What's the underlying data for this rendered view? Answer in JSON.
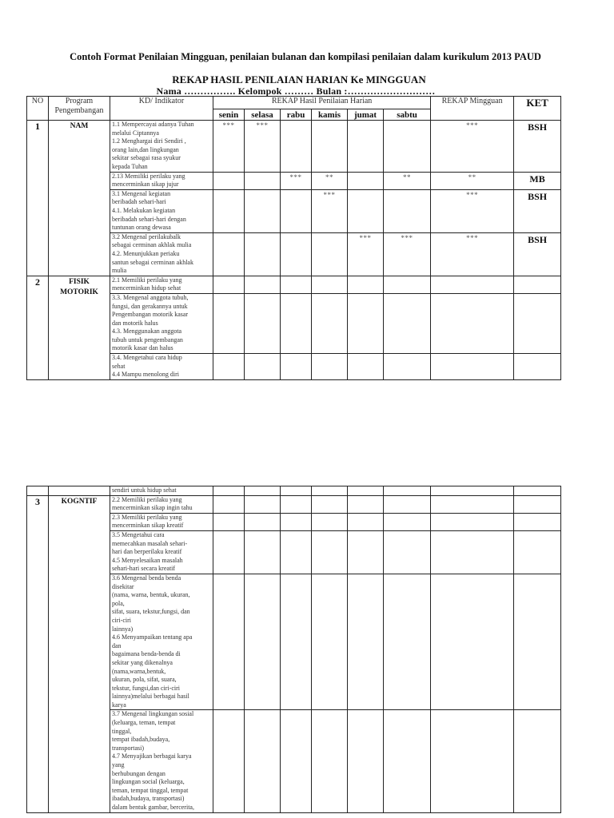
{
  "document_title": "Contoh Format Penilaian Mingguan, penilaian bulanan dan kompilasi penilaian dalam kurikulum 2013 PAUD",
  "rekap_title": "REKAP HASIL PENILAIAN HARIAN Ke MINGGUAN",
  "meta_line": "Nama …………….     Kelompok ………     Bulan :………………………",
  "headers": {
    "no": "NO",
    "program": "Program Pengembangan",
    "kd": "KD/ Indikator",
    "harian": "REKAP Hasil Penilaian Harian",
    "days": [
      "senin",
      "selasa",
      "rabu",
      "kamis",
      "jumat",
      "sabtu"
    ],
    "mingguan": "REKAP Mingguan",
    "ket": "KET"
  },
  "table1": [
    {
      "no": "1",
      "program": "NAM",
      "span": 4,
      "kd": "1.1 Mempercayai adanya Tuhan\nmelalui Ciptannya\n1.2 Menghargai diri Sendiri ,\norang lain,dan lingkungan\nsekitar sebagai rasa syukur\nkepada Tuhan",
      "days": [
        "***",
        "***",
        "",
        "",
        "",
        ""
      ],
      "mingguan": "***",
      "ket": "BSH"
    },
    {
      "kd": "2.13 Memiliki perilaku yang\nmencerminkan sikap jujur",
      "days": [
        "",
        "",
        "***",
        "**",
        "",
        "**"
      ],
      "mingguan": "**",
      "ket": "MB"
    },
    {
      "kd": "3.1 Mengenal kegiatan\nberibadah sehari-hari\n4.1. Melakukan kegiatan\nberibadah sehari-hari dengan\ntuntunan orang dewasa",
      "days": [
        "",
        "",
        "",
        "***",
        "",
        ""
      ],
      "mingguan": "***",
      "ket": "BSH"
    },
    {
      "kd": "3.2 Mengenal perilakubalk\nsebagai cerminan akhlak mulia\n4.2. Menunjukkan periaku\nsantun sebagai cerminan akhlak\nmulia",
      "days": [
        "",
        "",
        "",
        "",
        "***",
        "***"
      ],
      "mingguan": "***",
      "ket": "BSH"
    },
    {
      "no": "2",
      "program": "FISIK MOTORIK",
      "span": 3,
      "kd": "2.1 Memiliki perilaku yang\nmencerminkan hidup sehat",
      "days": [
        "",
        "",
        "",
        "",
        "",
        ""
      ],
      "mingguan": "",
      "ket": ""
    },
    {
      "kd": "3.3. Mengenal anggota tubuh,\nfungsi, dan gerakannya untuk\nPengembangan motorik kasar\ndan motorik halus\n4.3. Menggunakan anggota\ntubuh untuk pengembangan\nmotorik kasar dan halus",
      "days": [
        "",
        "",
        "",
        "",
        "",
        ""
      ],
      "mingguan": "",
      "ket": ""
    },
    {
      "kd": "3.4. Mengetahui cara hidup\nsehat\n4.4 Mampu menolong diri",
      "days": [
        "",
        "",
        "",
        "",
        "",
        ""
      ],
      "mingguan": "",
      "ket": ""
    }
  ],
  "table2": [
    {
      "no": "",
      "program": "",
      "span": 1,
      "kd": "sendiri untuk hidup sehat",
      "days": [
        "",
        "",
        "",
        "",
        "",
        ""
      ],
      "mingguan": "",
      "ket": ""
    },
    {
      "no": "3",
      "program": "KOGNTIF",
      "span": 5,
      "kd": "2.2 Memiliki perilaku yang\nmencerminkan sikap ingin tahu",
      "days": [
        "",
        "",
        "",
        "",
        "",
        ""
      ],
      "mingguan": "",
      "ket": ""
    },
    {
      "kd": "2.3 Memiliki perilaku yang\nmencerminkan sikap kreatif",
      "days": [
        "",
        "",
        "",
        "",
        "",
        ""
      ],
      "mingguan": "",
      "ket": ""
    },
    {
      "kd": "3.5 Mengetahui cara\nmemecahkan masalah sehari-\nhari dan berperilaku kreatif\n4.5 Menyelesaikan masalah\nsehari-hari secara kreatif",
      "days": [
        "",
        "",
        "",
        "",
        "",
        ""
      ],
      "mingguan": "",
      "ket": ""
    },
    {
      "kd": "3.6 Mengenal benda benda\ndisekitar\n(nama, warna, bentuk, ukuran,\npola,\nsifat, suara, tekstur,fungsi, dan\nciri-ciri\nlainnya)\n4.6 Menyampaikan tentang apa\ndan\nbagaimana benda-benda di\nsekitar yang dikenalnya\n(nama,warna,bentuk,\nukuran, pola, sifat, suara,\ntekstur, fungsi,dan ciri-ciri\nlainnya)melalui berbagai hasil\nkarya",
      "days": [
        "",
        "",
        "",
        "",
        "",
        ""
      ],
      "mingguan": "",
      "ket": ""
    },
    {
      "kd": "3.7 Mengenal lingkungan sosial\n(keluarga, teman, tempat\ntinggal,\ntempat ibadah,budaya,\ntransportasi)\n4.7 Menyajikan berbagai karya\nyang\nberhubungan dengan\nlingkungan social (keluarga,\nteman, tempat tinggal, tempat\nibadah,budaya, transportasi)\ndalam bentuk gambar, bercerita,",
      "days": [
        "",
        "",
        "",
        "",
        "",
        ""
      ],
      "mingguan": "",
      "ket": ""
    }
  ]
}
